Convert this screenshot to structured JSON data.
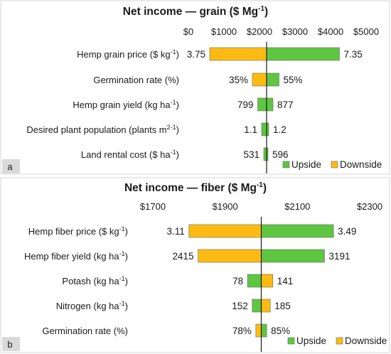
{
  "chart_data": [
    {
      "type": "bar",
      "orientation": "horizontal",
      "panel_label": "a",
      "title": "Net income — grain ($ Mg",
      "title_sup": "-1",
      "title_end": ")",
      "xlim": [
        0,
        5000
      ],
      "xticks": [
        "$0",
        "$1000",
        "$2000",
        "$3000",
        "$4000",
        "$5000"
      ],
      "baseline": 2200,
      "legend": {
        "position": "bottom-right",
        "upside": "Upside",
        "downside": "Downside"
      },
      "colors": {
        "upside": "#5ec640",
        "downside": "#fdbb12"
      },
      "rows": [
        {
          "label": "Hemp grain price ($ kg",
          "sup": "-1",
          "end": ")",
          "low_value": 600,
          "low_label": "3.75",
          "high_value": 4250,
          "high_label": "7.35",
          "low_color": "downside",
          "high_color": "upside"
        },
        {
          "label": "Germination rate (%)",
          "sup": "",
          "end": "",
          "low_value": 1800,
          "low_label": "35%",
          "high_value": 2550,
          "high_label": "55%",
          "low_color": "downside",
          "high_color": "upside"
        },
        {
          "label": "Hemp grain yield (kg ha",
          "sup": "-1",
          "end": ")",
          "low_value": 1950,
          "low_label": "799",
          "high_value": 2380,
          "high_label": "877",
          "low_color": "upside",
          "high_color": "upside"
        },
        {
          "label": "Desired plant population (plants m",
          "sup": "2-1",
          "end": ")",
          "low_value": 2060,
          "low_label": "1.1",
          "high_value": 2260,
          "high_label": "1.2",
          "low_color": "upside",
          "high_color": "upside"
        },
        {
          "label": "Land rental cost ($ ha",
          "sup": "-1",
          "end": ")",
          "low_value": 2120,
          "low_label": "531",
          "high_value": 2240,
          "high_label": "596",
          "low_color": "upside",
          "high_color": "upside"
        }
      ]
    },
    {
      "type": "bar",
      "orientation": "horizontal",
      "panel_label": "b",
      "title": "Net income — fiber ($ Mg",
      "title_sup": "-1",
      "title_end": ")",
      "xlim": [
        1700,
        2300
      ],
      "xticks": [
        "$1700",
        "$1900",
        "$2100",
        "$2300"
      ],
      "baseline": 2000,
      "legend": {
        "position": "bottom-right",
        "upside": "Upside",
        "downside": "Downside"
      },
      "colors": {
        "upside": "#5ec640",
        "downside": "#fdbb12"
      },
      "rows": [
        {
          "label": "Hemp fiber price ($ kg",
          "sup": "-1",
          "end": ")",
          "low_value": 1800,
          "low_label": "3.11",
          "high_value": 2200,
          "high_label": "3.49",
          "low_color": "downside",
          "high_color": "upside"
        },
        {
          "label": "Hemp fiber yield (kg ha",
          "sup": "-1",
          "end": ")",
          "low_value": 1825,
          "low_label": "2415",
          "high_value": 2175,
          "high_label": "3191",
          "low_color": "downside",
          "high_color": "upside"
        },
        {
          "label": "Potash (kg ha",
          "sup": "-1",
          "end": ")",
          "low_value": 1962,
          "low_label": "78",
          "high_value": 2032,
          "high_label": "141",
          "low_color": "upside",
          "high_color": "downside"
        },
        {
          "label": "Nitrogen (kg ha",
          "sup": "-1",
          "end": ")",
          "low_value": 1975,
          "low_label": "152",
          "high_value": 2025,
          "high_label": "185",
          "low_color": "upside",
          "high_color": "downside"
        },
        {
          "label": "Germination rate (%)",
          "sup": "",
          "end": "",
          "low_value": 1985,
          "low_label": "78%",
          "high_value": 2015,
          "high_label": "85%",
          "low_color": "downside",
          "high_color": "upside"
        }
      ]
    }
  ]
}
